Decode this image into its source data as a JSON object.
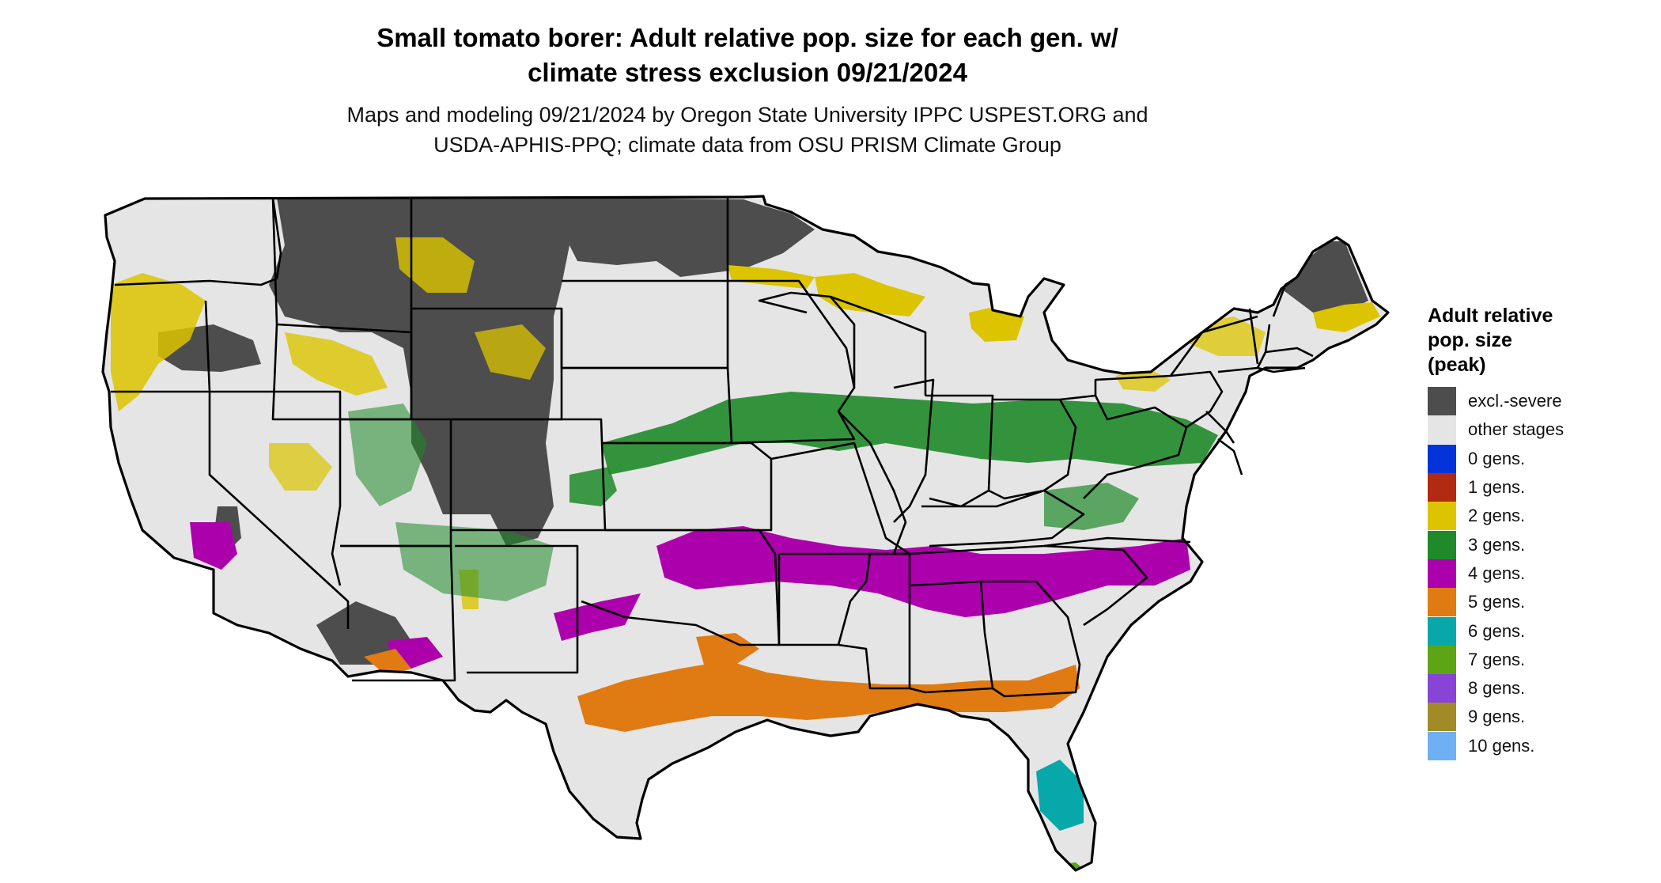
{
  "title": {
    "line1": "Small tomato borer: Adult relative pop. size for each gen. w/",
    "line2": "climate stress exclusion 09/21/2024"
  },
  "subtitle": {
    "line1": "Maps and modeling 09/21/2024 by Oregon State University IPPC USPEST.ORG and",
    "line2": "USDA-APHIS-PPQ; climate data from OSU PRISM Climate Group"
  },
  "legend": {
    "title_line1": "Adult relative",
    "title_line2": "pop. size",
    "title_line3": "(peak)",
    "items": [
      {
        "label": "excl.-severe",
        "color": "#4d4d4d"
      },
      {
        "label": "other stages",
        "color": "#e5e5e5"
      },
      {
        "label": "0 gens.",
        "color": "#0433d9"
      },
      {
        "label": "1 gens.",
        "color": "#b22a12"
      },
      {
        "label": "2 gens.",
        "color": "#dcc400"
      },
      {
        "label": "3 gens.",
        "color": "#1f8a2a"
      },
      {
        "label": "4 gens.",
        "color": "#ad00ad"
      },
      {
        "label": "5 gens.",
        "color": "#e07a12"
      },
      {
        "label": "6 gens.",
        "color": "#08a8aa"
      },
      {
        "label": "7 gens.",
        "color": "#5da517"
      },
      {
        "label": "8 gens.",
        "color": "#8844d6"
      },
      {
        "label": "9 gens.",
        "color": "#a28b26"
      },
      {
        "label": "10 gens.",
        "color": "#6fb0f4"
      }
    ]
  }
}
